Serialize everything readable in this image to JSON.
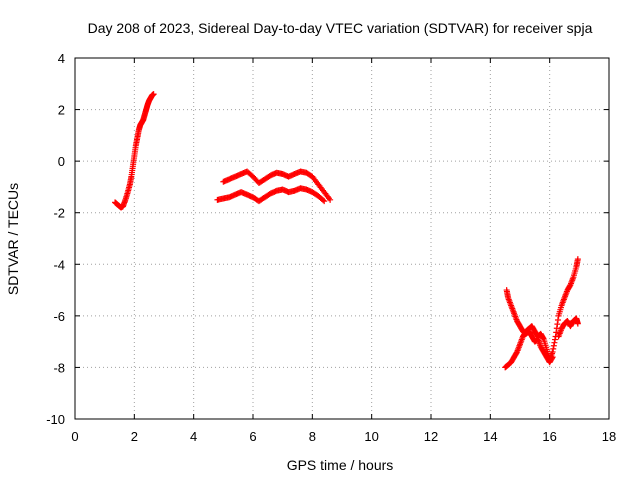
{
  "colors": {
    "series": "#ff0000",
    "grid": "#a0a0a0",
    "axis": "#000000"
  },
  "chart_data": {
    "type": "scatter",
    "title": "Day 208 of 2023, Sidereal Day-to-day VTEC variation (SDTVAR) for receiver spja",
    "xlabel": "GPS time / hours",
    "ylabel": "SDTVAR / TECUs",
    "xlim": [
      0,
      18
    ],
    "ylim": [
      -10,
      4
    ],
    "xticks": [
      0,
      2,
      4,
      6,
      8,
      10,
      12,
      14,
      16,
      18
    ],
    "yticks": [
      -10,
      -8,
      -6,
      -4,
      -2,
      0,
      2,
      4
    ],
    "xtick_labels": [
      "0",
      "2",
      "4",
      "6",
      "8",
      "10",
      "12",
      "14",
      "16",
      "18"
    ],
    "ytick_labels": [
      "-10",
      "-8",
      "-6",
      "-4",
      "-2",
      "0",
      "2",
      "4"
    ],
    "grid": true,
    "marker": "plus",
    "series": [
      {
        "name": "segment-early-rise",
        "x": [
          1.35,
          1.45,
          1.55,
          1.62,
          1.7,
          1.78,
          1.85,
          1.9,
          1.95,
          2.0,
          2.05,
          2.1,
          2.15,
          2.2,
          2.25,
          2.3,
          2.35,
          2.4,
          2.45,
          2.5,
          2.55,
          2.6,
          2.65
        ],
        "y": [
          -1.6,
          -1.7,
          -1.8,
          -1.75,
          -1.5,
          -1.2,
          -0.9,
          -0.6,
          -0.2,
          0.2,
          0.6,
          0.9,
          1.2,
          1.4,
          1.5,
          1.6,
          1.8,
          2.0,
          2.2,
          2.35,
          2.45,
          2.55,
          2.6
        ]
      },
      {
        "name": "segment-midday-upper",
        "x": [
          5.0,
          5.2,
          5.4,
          5.6,
          5.8,
          6.0,
          6.2,
          6.4,
          6.6,
          6.8,
          7.0,
          7.2,
          7.4,
          7.6,
          7.8,
          8.0,
          8.2,
          8.4,
          8.6
        ],
        "y": [
          -0.8,
          -0.7,
          -0.6,
          -0.5,
          -0.4,
          -0.6,
          -0.85,
          -0.7,
          -0.55,
          -0.45,
          -0.5,
          -0.6,
          -0.5,
          -0.4,
          -0.45,
          -0.6,
          -0.9,
          -1.2,
          -1.5
        ]
      },
      {
        "name": "segment-midday-lower",
        "x": [
          4.8,
          5.0,
          5.2,
          5.4,
          5.6,
          5.8,
          6.0,
          6.2,
          6.4,
          6.6,
          6.8,
          7.0,
          7.2,
          7.4,
          7.6,
          7.8,
          8.0,
          8.2,
          8.4
        ],
        "y": [
          -1.5,
          -1.45,
          -1.4,
          -1.3,
          -1.2,
          -1.3,
          -1.4,
          -1.55,
          -1.4,
          -1.25,
          -1.15,
          -1.1,
          -1.2,
          -1.15,
          -1.05,
          -1.1,
          -1.2,
          -1.35,
          -1.55
        ]
      },
      {
        "name": "segment-late-descent",
        "x": [
          14.55,
          14.6,
          14.7,
          14.8,
          14.9,
          15.0,
          15.1,
          15.2,
          15.3,
          15.4,
          15.5,
          15.6,
          15.7,
          15.8,
          15.9,
          16.0,
          16.1
        ],
        "y": [
          -5.0,
          -5.3,
          -5.6,
          -5.9,
          -6.2,
          -6.4,
          -6.6,
          -6.7,
          -6.6,
          -6.8,
          -7.0,
          -6.9,
          -7.2,
          -7.4,
          -7.6,
          -7.8,
          -7.6
        ]
      },
      {
        "name": "segment-late-rise",
        "x": [
          14.5,
          14.6,
          14.7,
          14.8,
          14.9,
          15.0,
          15.1,
          15.2,
          15.3,
          15.4,
          15.5,
          15.6,
          15.7,
          15.8,
          15.9,
          16.0,
          16.1,
          16.2,
          16.3,
          16.4,
          16.5,
          16.6,
          16.7,
          16.8,
          16.9,
          16.95
        ],
        "y": [
          -8.0,
          -7.9,
          -7.8,
          -7.6,
          -7.4,
          -7.1,
          -6.8,
          -6.6,
          -6.5,
          -6.4,
          -6.6,
          -6.8,
          -6.7,
          -6.9,
          -7.3,
          -7.7,
          -7.4,
          -6.8,
          -6.0,
          -5.6,
          -5.3,
          -5.0,
          -4.8,
          -4.5,
          -4.1,
          -3.8
        ]
      },
      {
        "name": "segment-late-tail",
        "x": [
          16.3,
          16.4,
          16.5,
          16.6,
          16.7,
          16.8,
          16.9,
          16.95
        ],
        "y": [
          -6.8,
          -6.5,
          -6.3,
          -6.2,
          -6.4,
          -6.2,
          -6.1,
          -6.3
        ]
      }
    ]
  }
}
